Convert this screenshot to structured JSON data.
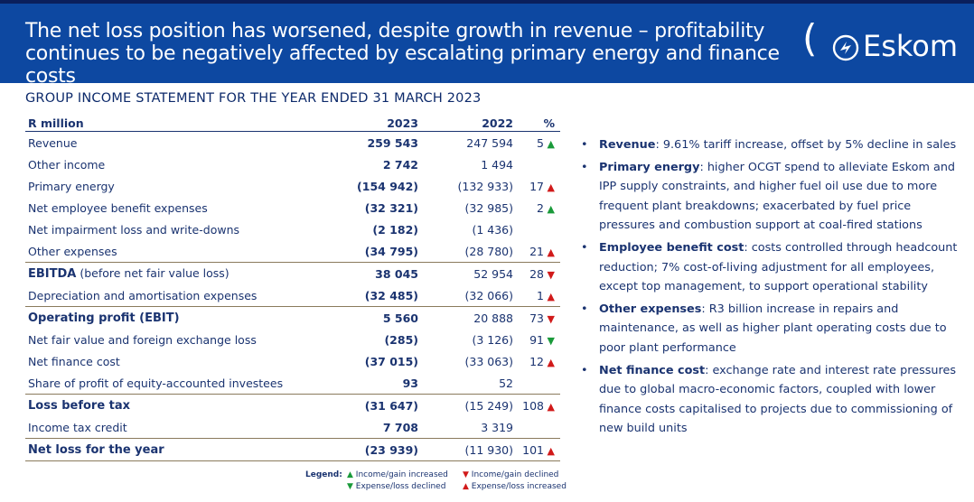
{
  "header": {
    "title_line1": "The net loss position has worsened, despite growth in revenue – profitability",
    "title_line2": "continues to be negatively affected by escalating primary energy and finance costs",
    "logo_text": "Eskom"
  },
  "subtitle": "GROUP INCOME STATEMENT FOR THE YEAR ENDED 31 MARCH 2023",
  "table": {
    "headers": [
      "R million",
      "2023",
      "2022",
      "%"
    ],
    "rows": [
      {
        "label": "Revenue",
        "y2023": "259 543",
        "y2022": "247 594",
        "pct": "5",
        "arrow": "▲",
        "arrow_color": "#1a9a3a",
        "style": ""
      },
      {
        "label": "Other income",
        "y2023": "2 742",
        "y2022": "1 494",
        "pct": "",
        "arrow": "",
        "arrow_color": "",
        "style": ""
      },
      {
        "label": "Primary energy",
        "y2023": "(154 942)",
        "y2022": "(132 933)",
        "pct": "17",
        "arrow": "▲",
        "arrow_color": "#d11a1a",
        "style": ""
      },
      {
        "label": "Net employee benefit expenses",
        "y2023": "(32 321)",
        "y2022": "(32 985)",
        "pct": "2",
        "arrow": "▲",
        "arrow_color": "#1a9a3a",
        "style": ""
      },
      {
        "label": "Net impairment loss and write-downs",
        "y2023": "(2 182)",
        "y2022": "(1 436)",
        "pct": "",
        "arrow": "",
        "arrow_color": "",
        "style": ""
      },
      {
        "label": "Other expenses",
        "y2023": "(34 795)",
        "y2022": "(28 780)",
        "pct": "21",
        "arrow": "▲",
        "arrow_color": "#d11a1a",
        "style": ""
      },
      {
        "label": "EBITDA",
        "label_suffix": " (before net fair value loss)",
        "y2023": "38 045",
        "y2022": "52 954",
        "pct": "28",
        "arrow": "▼",
        "arrow_color": "#d11a1a",
        "style": "bold sep"
      },
      {
        "label": "Depreciation and amortisation expenses",
        "y2023": "(32 485)",
        "y2022": "(32 066)",
        "pct": "1",
        "arrow": "▲",
        "arrow_color": "#d11a1a",
        "style": ""
      },
      {
        "label": "Operating profit (EBIT)",
        "y2023": "5 560",
        "y2022": "20 888",
        "pct": "73",
        "arrow": "▼",
        "arrow_color": "#d11a1a",
        "style": "bold sep"
      },
      {
        "label": "Net fair value and foreign exchange loss",
        "y2023": "(285)",
        "y2022": "(3 126)",
        "pct": "91",
        "arrow": "▼",
        "arrow_color": "#1a9a3a",
        "style": ""
      },
      {
        "label": "Net finance cost",
        "y2023": "(37 015)",
        "y2022": "(33 063)",
        "pct": "12",
        "arrow": "▲",
        "arrow_color": "#d11a1a",
        "style": ""
      },
      {
        "label": "Share of profit of equity-accounted investees",
        "y2023": "93",
        "y2022": "52",
        "pct": "",
        "arrow": "",
        "arrow_color": "",
        "style": ""
      },
      {
        "label": "Loss before tax",
        "y2023": "(31 647)",
        "y2022": "(15 249)",
        "pct": "108",
        "arrow": "▲",
        "arrow_color": "#d11a1a",
        "style": "bold sep"
      },
      {
        "label": "Income tax credit",
        "y2023": "7 708",
        "y2022": "3 319",
        "pct": "",
        "arrow": "",
        "arrow_color": "",
        "style": ""
      },
      {
        "label": "Net loss for the year",
        "y2023": "(23 939)",
        "y2022": "(11 930)",
        "pct": "101",
        "arrow": "▲",
        "arrow_color": "#d11a1a",
        "style": "bold sep last"
      }
    ]
  },
  "legend": {
    "title": "Legend:",
    "items": [
      {
        "symbol": "▲",
        "color": "#1a9a3a",
        "text": "Income/gain increased"
      },
      {
        "symbol": "▼",
        "color": "#d11a1a",
        "text": "Income/gain declined"
      },
      {
        "symbol": "▼",
        "color": "#1a9a3a",
        "text": "Expense/loss declined"
      },
      {
        "symbol": "▲",
        "color": "#d11a1a",
        "text": "Expense/loss increased"
      }
    ]
  },
  "bullets": [
    {
      "head": "Revenue",
      "text": ": 9.61% tariff increase, offset by 5% decline in sales"
    },
    {
      "head": "Primary energy",
      "text": ": higher OCGT spend to alleviate Eskom and IPP supply constraints, and higher fuel oil use due to more frequent plant breakdowns; exacerbated by fuel price pressures and combustion support at coal-fired stations"
    },
    {
      "head": "Employee benefit cost",
      "text": ": costs controlled through headcount reduction; 7% cost-of-living adjustment for all employees, except top management, to support operational stability"
    },
    {
      "head": "Other expenses",
      "text": ": R3 billion increase in repairs and maintenance, as well as higher plant operating costs due to poor plant performance"
    },
    {
      "head": "Net finance cost",
      "text": ": exchange rate and interest rate pressures due to global macro-economic factors, coupled with lower finance costs capitalised to projects due to commissioning of new build units"
    }
  ],
  "colors": {
    "header_bg": "#0d48a1",
    "text": "#1a3370",
    "increase_green": "#1a9a3a",
    "decrease_red": "#d11a1a"
  }
}
